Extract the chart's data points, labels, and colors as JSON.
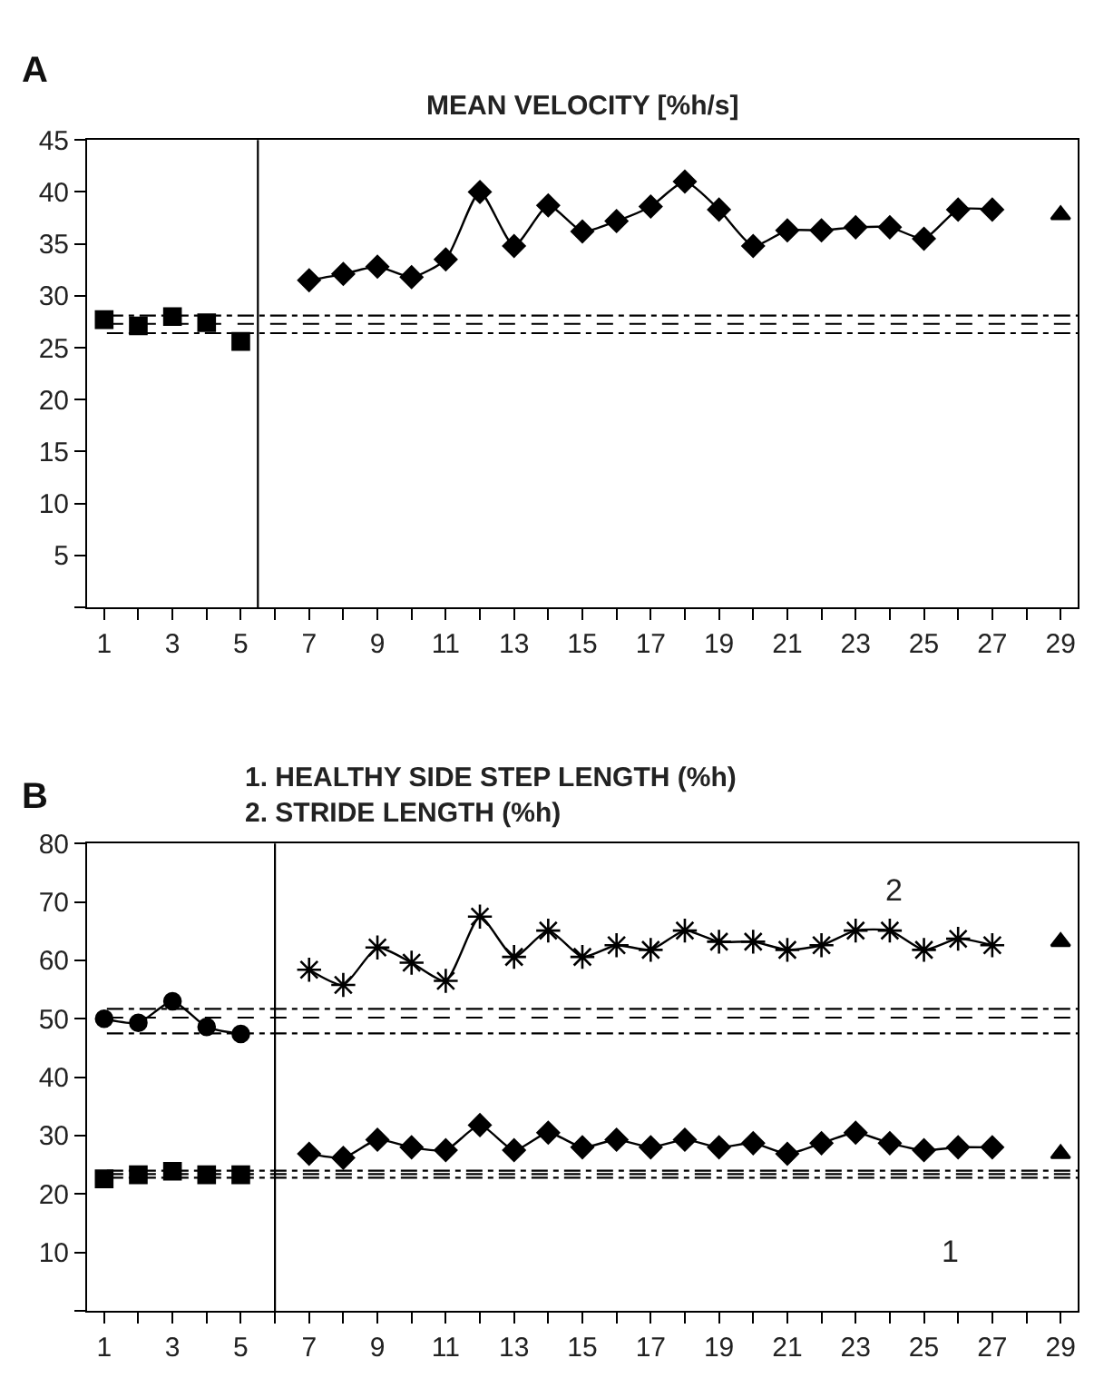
{
  "chart_data": [
    {
      "type": "line",
      "title": "MEAN VELOCITY [%h/s]",
      "annotations": [
        "A"
      ],
      "xlim": [
        0.5,
        29.5
      ],
      "xticks": [
        1,
        {
          "value": 2,
          "label": null
        },
        3,
        {
          "value": 4,
          "label": null
        },
        5,
        {
          "value": 6,
          "label": null
        },
        7,
        {
          "value": 8,
          "label": null
        },
        9,
        {
          "value": 10,
          "label": null
        },
        11,
        {
          "value": 12,
          "label": null
        },
        13,
        {
          "value": 14,
          "label": null
        },
        15,
        {
          "value": 16,
          "label": null
        },
        17,
        {
          "value": 18,
          "label": null
        },
        19,
        {
          "value": 20,
          "label": null
        },
        21,
        {
          "value": 22,
          "label": null
        },
        23,
        {
          "value": 24,
          "label": null
        },
        25,
        {
          "value": 26,
          "label": null
        },
        27,
        {
          "value": 28,
          "label": null
        },
        29
      ],
      "ylim": [
        0,
        45
      ],
      "yticks": [
        {
          "value": 0,
          "label": null
        },
        5,
        10,
        15,
        20,
        25,
        30,
        35,
        40,
        45
      ],
      "series": [
        {
          "type": "scatter",
          "marker": "square",
          "color": "#000000",
          "x": [
            1,
            2,
            3,
            4,
            5
          ],
          "values": [
            27.7,
            27.1,
            28.0,
            27.4,
            25.6
          ]
        },
        {
          "marker": "diamond",
          "color": "#000000",
          "x": [
            7,
            8,
            9,
            10,
            11,
            12,
            13,
            14,
            15,
            16,
            17,
            18,
            19,
            20,
            21,
            22,
            23,
            24,
            25,
            26,
            27
          ],
          "values": [
            31.5,
            32.1,
            32.8,
            31.8,
            33.5,
            40.0,
            34.8,
            38.7,
            36.2,
            37.2,
            38.6,
            41.0,
            38.3,
            34.8,
            36.3,
            36.3,
            36.6,
            36.6,
            35.5,
            38.3,
            38.3
          ]
        },
        {
          "type": "scatter",
          "marker": "triangle",
          "color": "#000000",
          "x": [
            29
          ],
          "values": [
            37.8
          ]
        }
      ],
      "ref_lines": [
        {
          "axis": "x",
          "value": 5.5,
          "line_style": "solid",
          "color": "#000000"
        },
        {
          "axis": "y",
          "value": 28.1,
          "line_style": "dashdot",
          "color": "#000000"
        },
        {
          "axis": "y",
          "value": 27.3,
          "line_style": "dashed",
          "color": "#000000"
        },
        {
          "axis": "y",
          "value": 26.4,
          "line_style": "dashdot",
          "color": "#000000"
        }
      ]
    },
    {
      "type": "line",
      "title": "1. HEALTHY SIDE STEP LENGTH (%h)\n2. STRIDE LENGTH (%h)",
      "annotations": [
        "B",
        "2",
        "1"
      ],
      "xlim": [
        0.5,
        29.5
      ],
      "xticks": [
        1,
        {
          "value": 2,
          "label": null
        },
        3,
        {
          "value": 4,
          "label": null
        },
        5,
        {
          "value": 6,
          "label": null
        },
        7,
        {
          "value": 8,
          "label": null
        },
        9,
        {
          "value": 10,
          "label": null
        },
        11,
        {
          "value": 12,
          "label": null
        },
        13,
        {
          "value": 14,
          "label": null
        },
        15,
        {
          "value": 16,
          "label": null
        },
        17,
        {
          "value": 18,
          "label": null
        },
        19,
        {
          "value": 20,
          "label": null
        },
        21,
        {
          "value": 22,
          "label": null
        },
        23,
        {
          "value": 24,
          "label": null
        },
        25,
        {
          "value": 26,
          "label": null
        },
        27,
        {
          "value": 28,
          "label": null
        },
        29
      ],
      "ylim": [
        0,
        80
      ],
      "yticks": [
        {
          "value": 0,
          "label": null
        },
        10,
        20,
        30,
        40,
        50,
        60,
        70,
        80
      ],
      "series": [
        {
          "marker": "circle",
          "color": "#000000",
          "x": [
            1,
            2,
            3,
            4,
            5
          ],
          "values": [
            50.0,
            49.3,
            53.0,
            48.6,
            47.4
          ]
        },
        {
          "type": "scatter",
          "marker": "square",
          "color": "#000000",
          "x": [
            1,
            2,
            3,
            4,
            5
          ],
          "values": [
            22.6,
            23.3,
            23.9,
            23.3,
            23.3
          ]
        },
        {
          "marker": "cross",
          "color": "#000000",
          "x": [
            7,
            8,
            9,
            10,
            11,
            12,
            13,
            14,
            15,
            16,
            17,
            18,
            19,
            20,
            21,
            22,
            23,
            24,
            25,
            26,
            27
          ],
          "values": [
            58.4,
            55.8,
            62.2,
            59.6,
            56.5,
            67.5,
            60.6,
            65.1,
            60.6,
            62.6,
            61.8,
            65.1,
            63.2,
            63.2,
            61.8,
            62.6,
            65.1,
            65.1,
            61.8,
            63.7,
            62.6
          ]
        },
        {
          "marker": "diamond",
          "color": "#000000",
          "x": [
            7,
            8,
            9,
            10,
            11,
            12,
            13,
            14,
            15,
            16,
            17,
            18,
            19,
            20,
            21,
            22,
            23,
            24,
            25,
            26,
            27
          ],
          "values": [
            26.9,
            26.2,
            29.3,
            28.0,
            27.5,
            31.8,
            27.5,
            30.5,
            28.0,
            29.3,
            28.0,
            29.3,
            28.0,
            28.7,
            26.9,
            28.7,
            30.5,
            28.7,
            27.5,
            28.0,
            28.0
          ]
        },
        {
          "type": "scatter",
          "marker": "triangle",
          "color": "#000000",
          "x": [
            29,
            29
          ],
          "values": [
            63.2,
            26.9
          ]
        }
      ],
      "ref_lines": [
        {
          "axis": "x",
          "value": 6,
          "line_style": "solid",
          "color": "#000000"
        },
        {
          "axis": "y",
          "value": 51.7,
          "line_style": "dashdot",
          "color": "#000000"
        },
        {
          "axis": "y",
          "value": 50.2,
          "line_style": "dashed",
          "color": "#000000"
        },
        {
          "axis": "y",
          "value": 47.5,
          "line_style": "dashdot",
          "color": "#000000"
        },
        {
          "axis": "y",
          "value": 24.0,
          "line_style": "dashdot",
          "color": "#000000"
        },
        {
          "axis": "y",
          "value": 23.4,
          "line_style": "dashed",
          "color": "#000000"
        },
        {
          "axis": "y",
          "value": 22.8,
          "line_style": "dashdot",
          "color": "#000000"
        }
      ]
    }
  ]
}
